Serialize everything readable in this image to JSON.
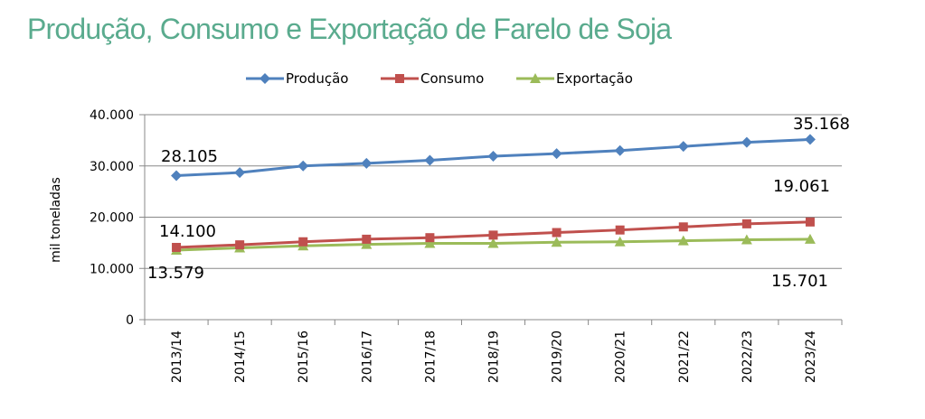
{
  "title": "Produção, Consumo e Exportação de Farelo de Soja",
  "colors": {
    "title": "#5aab8e",
    "producao": "#4f81bd",
    "consumo": "#c0504d",
    "exportacao": "#9bbb59",
    "grid": "#888888"
  },
  "chart_data": {
    "type": "line",
    "title": "",
    "xlabel": "",
    "ylabel": "mil toneladas",
    "ylim": [
      0,
      40000
    ],
    "yticks": [
      "0",
      "10.000",
      "20.000",
      "30.000",
      "40.000"
    ],
    "grid": true,
    "legend_placement": "top-center",
    "categories": [
      "2013/14",
      "2014/15",
      "2015/16",
      "2016/17",
      "2017/18",
      "2018/19",
      "2019/20",
      "2020/21",
      "2021/22",
      "2022/23",
      "2023/24"
    ],
    "series": [
      {
        "name": "Produção",
        "marker": "diamond",
        "color": "#4f81bd",
        "values": [
          28105,
          28700,
          30000,
          30500,
          31100,
          31900,
          32400,
          33000,
          33800,
          34600,
          35168
        ]
      },
      {
        "name": "Consumo",
        "marker": "square",
        "color": "#c0504d",
        "values": [
          14100,
          14600,
          15200,
          15700,
          16000,
          16500,
          17000,
          17500,
          18100,
          18700,
          19061
        ]
      },
      {
        "name": "Exportação",
        "marker": "triangle",
        "color": "#9bbb59",
        "values": [
          13579,
          14000,
          14400,
          14700,
          14900,
          14900,
          15100,
          15200,
          15400,
          15600,
          15701
        ]
      }
    ],
    "annotations": [
      {
        "text": "28.105",
        "series": "Produção",
        "point": "2013/14"
      },
      {
        "text": "35.168",
        "series": "Produção",
        "point": "2023/24"
      },
      {
        "text": "14.100",
        "series": "Consumo",
        "point": "2013/14"
      },
      {
        "text": "19.061",
        "series": "Consumo",
        "point": "2023/24"
      },
      {
        "text": "13.579",
        "series": "Exportação",
        "point": "2013/14"
      },
      {
        "text": "15.701",
        "series": "Exportação",
        "point": "2023/24"
      }
    ]
  }
}
